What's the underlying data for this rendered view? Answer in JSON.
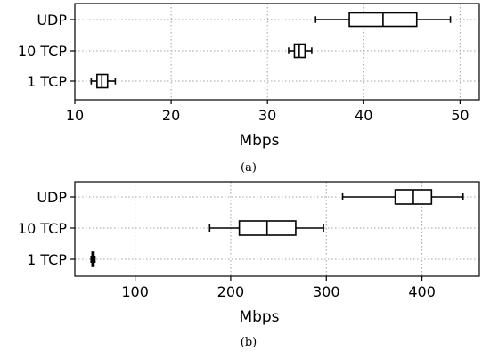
{
  "chart_data": [
    {
      "type": "boxplot",
      "panel_label": "(a)",
      "xlabel": "Mbps",
      "xlim": [
        10,
        52
      ],
      "xticks": [
        10,
        20,
        30,
        40,
        50
      ],
      "categories": [
        "UDP",
        "10 TCP",
        "1 TCP"
      ],
      "grid": true,
      "boxes": [
        {
          "name": "UDP",
          "whisker_low": 35,
          "q1": 38.5,
          "median": 42,
          "q3": 45.5,
          "whisker_high": 49
        },
        {
          "name": "10 TCP",
          "whisker_low": 32.2,
          "q1": 32.8,
          "median": 33.3,
          "q3": 33.9,
          "whisker_high": 34.6
        },
        {
          "name": "1 TCP",
          "whisker_low": 11.7,
          "q1": 12.3,
          "median": 12.8,
          "q3": 13.4,
          "whisker_high": 14.2
        }
      ]
    },
    {
      "type": "boxplot",
      "panel_label": "(b)",
      "xlabel": "Mbps",
      "xlim": [
        37,
        460
      ],
      "xticks": [
        100,
        200,
        300,
        400
      ],
      "categories": [
        "UDP",
        "10 TCP",
        "1 TCP"
      ],
      "grid": true,
      "boxes": [
        {
          "name": "UDP",
          "whisker_low": 317,
          "q1": 372,
          "median": 391,
          "q3": 410,
          "whisker_high": 443
        },
        {
          "name": "10 TCP",
          "whisker_low": 178,
          "q1": 209,
          "median": 238,
          "q3": 268,
          "whisker_high": 297
        },
        {
          "name": "1 TCP",
          "whisker_low": 54,
          "q1": 55,
          "median": 56,
          "q3": 57,
          "whisker_high": 58
        }
      ]
    }
  ]
}
